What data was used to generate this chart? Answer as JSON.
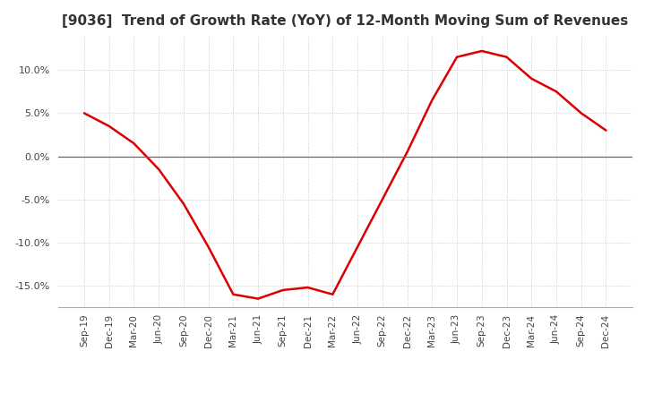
{
  "title": "[9036]  Trend of Growth Rate (YoY) of 12-Month Moving Sum of Revenues",
  "title_fontsize": 11,
  "line_color": "#dd0000",
  "background_color": "#ffffff",
  "grid_color": "#bbbbbb",
  "zero_line_color": "#666666",
  "x_labels": [
    "Sep-19",
    "Dec-19",
    "Mar-20",
    "Jun-20",
    "Sep-20",
    "Dec-20",
    "Mar-21",
    "Jun-21",
    "Sep-21",
    "Dec-21",
    "Mar-22",
    "Jun-22",
    "Sep-22",
    "Dec-22",
    "Mar-23",
    "Jun-23",
    "Sep-23",
    "Dec-23",
    "Mar-24",
    "Jun-24",
    "Sep-24",
    "Dec-24"
  ],
  "y_values": [
    5.0,
    3.5,
    1.5,
    -1.5,
    -5.5,
    -10.5,
    -16.0,
    -16.5,
    -15.5,
    -15.2,
    -16.0,
    -10.5,
    -5.0,
    0.5,
    6.5,
    11.5,
    12.2,
    11.5,
    9.0,
    7.5,
    5.0,
    3.0
  ],
  "ylim": [
    -17.5,
    14.0
  ],
  "yticks": [
    -15.0,
    -10.0,
    -5.0,
    0.0,
    5.0,
    10.0
  ]
}
